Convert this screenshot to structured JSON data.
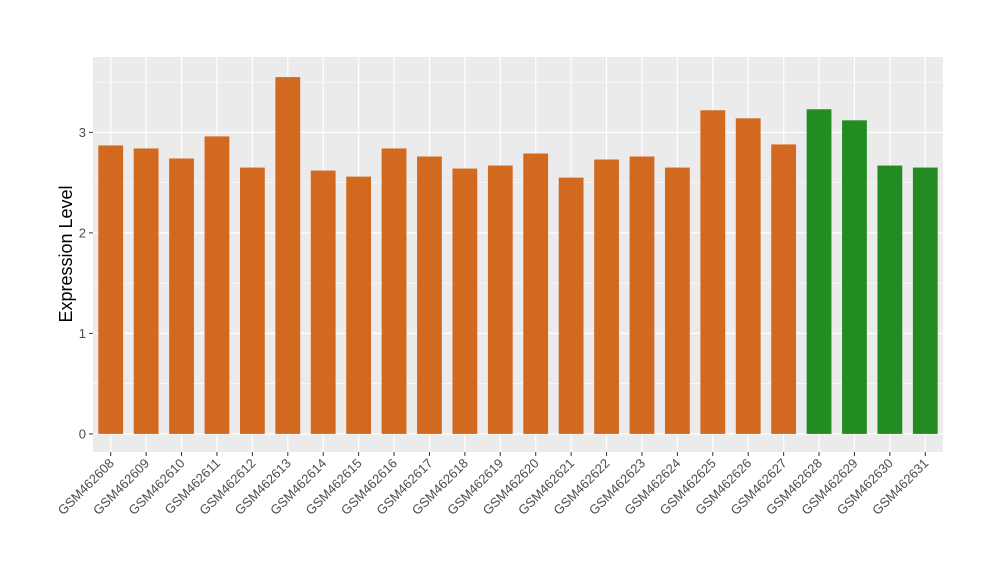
{
  "chart_data": {
    "type": "bar",
    "title": "",
    "xlabel": "",
    "ylabel": "Expression Level",
    "ylim": [
      -0.18,
      3.75
    ],
    "yticks": [
      0,
      1,
      2,
      3
    ],
    "grid": true,
    "legend": "none",
    "panel_background": "#ebebeb",
    "grid_color": "#ffffff",
    "categories": [
      "GSM462608",
      "GSM462609",
      "GSM462610",
      "GSM462611",
      "GSM462612",
      "GSM462613",
      "GSM462614",
      "GSM462615",
      "GSM462616",
      "GSM462617",
      "GSM462618",
      "GSM462619",
      "GSM462620",
      "GSM462621",
      "GSM462622",
      "GSM462623",
      "GSM462624",
      "GSM462625",
      "GSM462626",
      "GSM462627",
      "GSM462628",
      "GSM462629",
      "GSM462630",
      "GSM462631"
    ],
    "values": [
      2.87,
      2.84,
      2.74,
      2.96,
      2.65,
      3.55,
      2.62,
      2.56,
      2.84,
      2.76,
      2.64,
      2.67,
      2.79,
      2.55,
      2.73,
      2.76,
      2.65,
      3.22,
      3.14,
      2.88,
      3.23,
      3.12,
      2.67,
      2.65
    ],
    "colors": [
      "#d2691e",
      "#d2691e",
      "#d2691e",
      "#d2691e",
      "#d2691e",
      "#d2691e",
      "#d2691e",
      "#d2691e",
      "#d2691e",
      "#d2691e",
      "#d2691e",
      "#d2691e",
      "#d2691e",
      "#d2691e",
      "#d2691e",
      "#d2691e",
      "#d2691e",
      "#d2691e",
      "#d2691e",
      "#d2691e",
      "#228b22",
      "#228b22",
      "#228b22",
      "#228b22"
    ]
  }
}
